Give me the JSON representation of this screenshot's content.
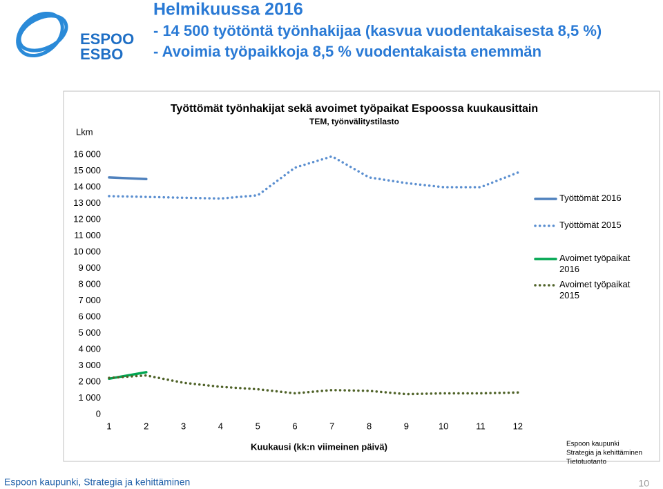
{
  "logo": {
    "lines": [
      "ESPOO",
      "ESBO"
    ]
  },
  "heading": {
    "title": "Helmikuussa 2016",
    "lines": [
      "- 14 500 työtöntä työnhakijaa (kasvua vuodentakaisesta 8,5 %)",
      "- Avoimia työpaikkoja 8,5 % vuodentakaista enemmän"
    ]
  },
  "chart_data": {
    "type": "line",
    "title": "Työttömät työnhakijat sekä avoimet työpaikat Espoossa kuukausittain",
    "subtitle": "TEM, työnvälitystilasto",
    "y_label": "Lkm",
    "x_label": "Kuukausi (kk:n viimeinen päivä)",
    "categories": [
      "1",
      "2",
      "3",
      "4",
      "5",
      "6",
      "7",
      "8",
      "9",
      "10",
      "11",
      "12"
    ],
    "ylim": [
      0,
      16000
    ],
    "yticks": [
      0,
      {
        "value": 1000,
        "label": "1 000"
      },
      {
        "value": 2000,
        "label": "2 000"
      },
      {
        "value": 3000,
        "label": "3 000"
      },
      {
        "value": 4000,
        "label": "4 000"
      },
      {
        "value": 5000,
        "label": "5 000"
      },
      {
        "value": 6000,
        "label": "6 000"
      },
      {
        "value": 7000,
        "label": "7 000"
      },
      {
        "value": 8000,
        "label": "8 000"
      },
      {
        "value": 9000,
        "label": "9 000"
      },
      {
        "value": 10000,
        "label": "10 000"
      },
      {
        "value": 11000,
        "label": "11 000"
      },
      {
        "value": 12000,
        "label": "12 000"
      },
      {
        "value": 13000,
        "label": "13 000"
      },
      {
        "value": 14000,
        "label": "14 000"
      },
      {
        "value": 15000,
        "label": "15 000"
      },
      {
        "value": 16000,
        "label": "16 000"
      }
    ],
    "legend": "right",
    "series": [
      {
        "name": "Työttömät 2016",
        "color": "#4f81bd",
        "dashed": false,
        "values": [
          14600,
          14500,
          null,
          null,
          null,
          null,
          null,
          null,
          null,
          null,
          null,
          null
        ]
      },
      {
        "name": "Työttömät 2015",
        "color": "#5b8fd0",
        "dashed": true,
        "values": [
          13450,
          13400,
          13350,
          13300,
          13500,
          15200,
          15900,
          14600,
          14250,
          14000,
          14000,
          14900
        ]
      },
      {
        "name": "Avoimet työpaikat 2016",
        "color": "#00a651",
        "dashed": false,
        "values": [
          2200,
          2600,
          null,
          null,
          null,
          null,
          null,
          null,
          null,
          null,
          null,
          null
        ]
      },
      {
        "name": "Avoimet työpaikat 2015",
        "color": "#4f6228",
        "dashed": true,
        "values": [
          2250,
          2400,
          1950,
          1700,
          1550,
          1300,
          1500,
          1450,
          1250,
          1300,
          1300,
          1350
        ]
      }
    ]
  },
  "note": [
    "Espoon kaupunki",
    "Strategia ja kehittäminen",
    "Tietotuotanto"
  ],
  "footer": {
    "text": "Espoon kaupunki, Strategia ja kehittäminen",
    "page": "10"
  }
}
